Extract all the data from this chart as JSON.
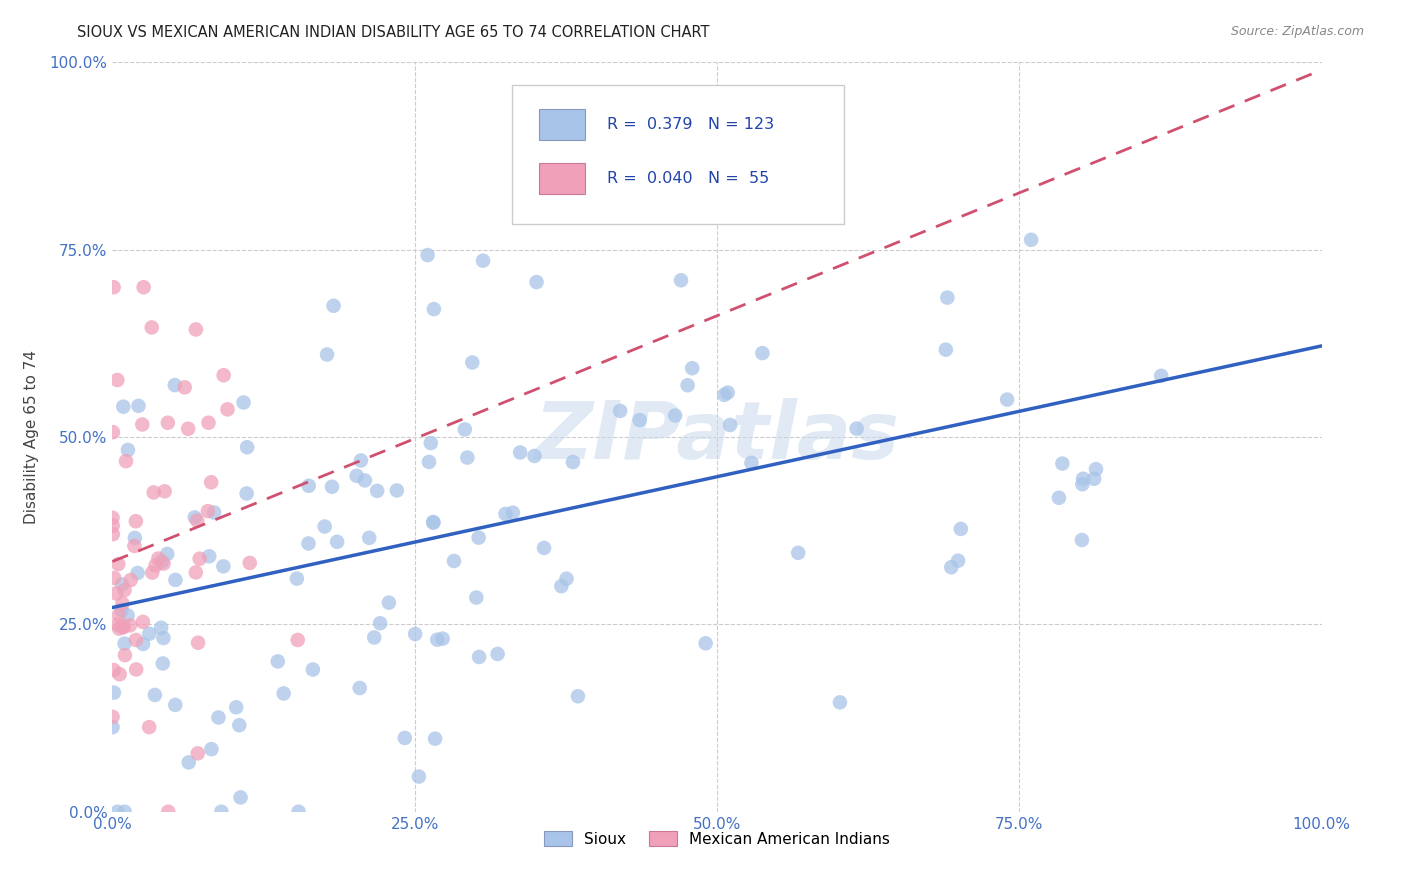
{
  "title": "SIOUX VS MEXICAN AMERICAN INDIAN DISABILITY AGE 65 TO 74 CORRELATION CHART",
  "source": "Source: ZipAtlas.com",
  "xlabel_ticks": [
    "0.0%",
    "25.0%",
    "50.0%",
    "75.0%",
    "100.0%"
  ],
  "ylabel": "Disability Age 65 to 74",
  "ylabel_ticks": [
    "0.0%",
    "25.0%",
    "50.0%",
    "75.0%",
    "100.0%"
  ],
  "sioux_R": "0.379",
  "sioux_N": "123",
  "mex_R": "0.040",
  "mex_N": "55",
  "sioux_color": "#a8c4e8",
  "mex_color": "#f0a0b8",
  "sioux_line_color": "#3060c0",
  "mex_line_color": "#d05070",
  "legend_sioux_label": "Sioux",
  "legend_mex_label": "Mexican American Indians",
  "watermark": "ZIPatlas",
  "bg_color": "#ffffff",
  "grid_color": "#cccccc",
  "title_color": "#222222",
  "axis_label_color": "#444444",
  "tick_color": "#4472c4"
}
